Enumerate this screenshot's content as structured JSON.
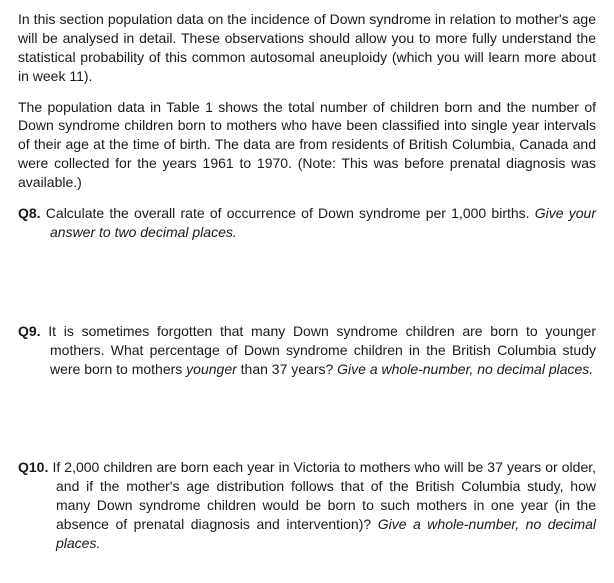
{
  "intro": {
    "p1": "In this section population data on the incidence of Down syndrome in relation to mother's age will be analysed in detail. These observations should allow you to more fully understand the statistical probability of this common autosomal aneuploidy (which you will learn more about in week 11).",
    "p2": "The population data in Table 1 shows the total number of children born and the number of Down syndrome children born to mothers who have been classified into single year intervals of their age at the time of birth. The data are from residents of British Columbia, Canada and were collected for the years 1961 to 1970. (Note: This was before prenatal diagnosis was available.)"
  },
  "q8": {
    "num": "Q8.",
    "body": "Calculate the overall rate of occurrence of Down syndrome per 1,000 births. ",
    "hint": "Give your answer to two decimal places."
  },
  "q9": {
    "num": "Q9.",
    "body_a": "It is sometimes forgotten that many Down syndrome children are born to younger mothers. What percentage of Down syndrome children in the British Columbia study were born to mothers ",
    "italic_word": "younger",
    "body_b": " than 37 years? ",
    "hint": "Give a whole-number, no decimal places."
  },
  "q10": {
    "num": "Q10.",
    "body": "If 2,000 children are born each year in Victoria to mothers who will be 37 years or older, and if the mother's age distribution follows that of the British Columbia study, how many Down syndrome children would be born to such mothers in one year (in the absence of prenatal diagnosis and intervention)? ",
    "hint": "Give a whole-number, no decimal places."
  }
}
